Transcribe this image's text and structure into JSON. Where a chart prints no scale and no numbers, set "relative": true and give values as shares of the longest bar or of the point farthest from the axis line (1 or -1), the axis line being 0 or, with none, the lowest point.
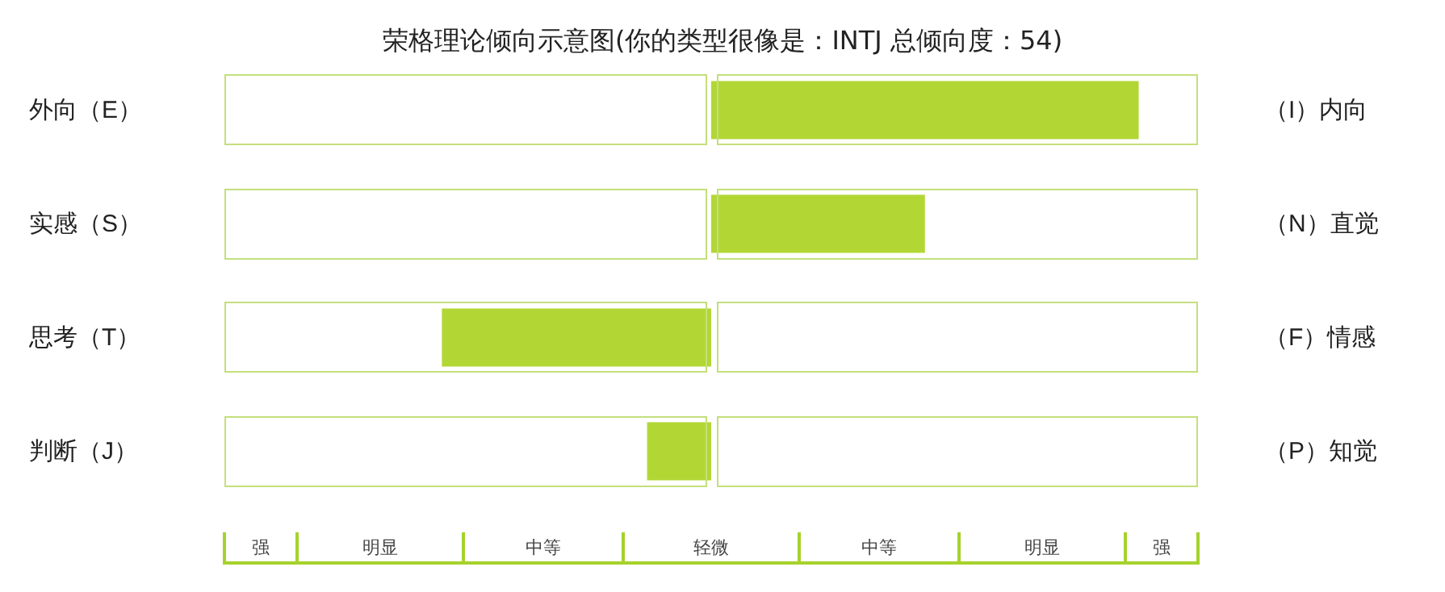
{
  "chart_data": {
    "type": "bar",
    "orientation": "horizontal",
    "relative": true,
    "title": "荣格理论倾向示意图(你的类型很像是：INTJ 总倾向度：54)",
    "categories": [
      "外向（E）",
      "实感（S）",
      "思考（T）",
      "判断（J）"
    ],
    "y2_categories": [
      "（I）内向",
      "（N）直觉",
      "（F）情感",
      "（P）知觉"
    ],
    "values": [
      1,
      0.5,
      -0.63,
      -0.15
    ],
    "color": "#b2d735",
    "annotations": [
      "强",
      "明显",
      "中等",
      "轻微",
      "中等",
      "明显",
      "强"
    ]
  }
}
